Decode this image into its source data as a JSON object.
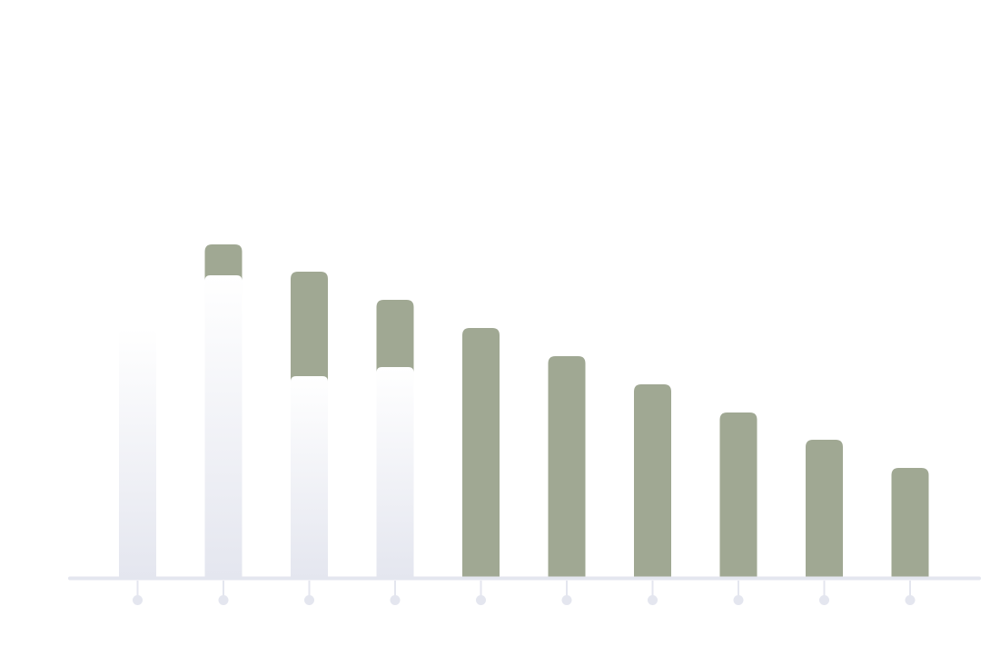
{
  "chart_data": {
    "type": "bar",
    "categories": [
      "",
      "",
      "",
      "",
      "",
      "",
      "",
      "",
      "",
      ""
    ],
    "series": [
      {
        "values": [
          0,
          367,
          337,
          306,
          275,
          244,
          213,
          182,
          152,
          121
        ]
      }
    ],
    "overlay": [
      275,
      333,
      222,
      232,
      0,
      0,
      0,
      0,
      0,
      0
    ],
    "ylim": [
      0,
      420
    ],
    "grid": false,
    "colors": {
      "bar": "#a0a893",
      "overlay_top": "#ffffff",
      "overlay_bottom": "#e4e6ef",
      "axis": "#e4e6ef",
      "tick": "#e4e6ef"
    }
  }
}
